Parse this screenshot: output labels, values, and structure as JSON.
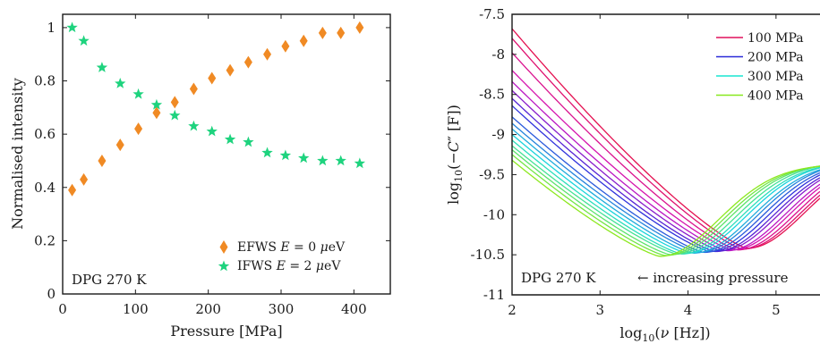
{
  "chart_data": [
    {
      "type": "scatter",
      "xlabel": "Pressure [MPa]",
      "ylabel": "Normalised intensity",
      "xlim": [
        0,
        450
      ],
      "ylim": [
        0,
        1.05
      ],
      "xticks": [
        "0",
        "100",
        "200",
        "300",
        "400"
      ],
      "yticks": [
        "0",
        "0.2",
        "0.4",
        "0.6",
        "0.8",
        "1"
      ],
      "annotation": "DPG 270 K",
      "legend_position": "bottom-right",
      "series": [
        {
          "name": "EFWS E = 0 μeV",
          "legend_parts": [
            "EFWS ",
            "E",
            " = 0 ",
            "μ",
            "eV"
          ],
          "marker": "diamond",
          "color": "#f08a24",
          "x": [
            13,
            29,
            54,
            79,
            104,
            129,
            154,
            180,
            205,
            230,
            255,
            281,
            306,
            331,
            357,
            382,
            408
          ],
          "y": [
            0.39,
            0.43,
            0.5,
            0.56,
            0.62,
            0.68,
            0.72,
            0.77,
            0.81,
            0.84,
            0.87,
            0.9,
            0.93,
            0.95,
            0.98,
            0.98,
            1.0
          ]
        },
        {
          "name": "IFWS E = 2 μeV",
          "legend_parts": [
            "IFWS ",
            "E",
            " = 2 ",
            "μ",
            "eV"
          ],
          "marker": "star",
          "color": "#1ed37e",
          "x": [
            13,
            29,
            54,
            79,
            104,
            129,
            154,
            180,
            205,
            230,
            255,
            281,
            306,
            331,
            357,
            382,
            408
          ],
          "y": [
            1.0,
            0.95,
            0.85,
            0.79,
            0.75,
            0.71,
            0.67,
            0.63,
            0.61,
            0.58,
            0.57,
            0.53,
            0.52,
            0.51,
            0.5,
            0.5,
            0.49
          ]
        }
      ]
    },
    {
      "type": "line",
      "xlabel_parts": [
        "log",
        "10",
        "(",
        "ν",
        " [Hz])"
      ],
      "ylabel_parts": [
        "log",
        "10",
        "(−",
        "C",
        "″",
        " [F])"
      ],
      "xlim": [
        2,
        5.5
      ],
      "ylim": [
        -11,
        -7.5
      ],
      "xticks": [
        "2",
        "3",
        "4",
        "5"
      ],
      "yticks": [
        "-7.5",
        "-8",
        "-8.5",
        "-9",
        "-9.5",
        "-10",
        "-10.5",
        "-11"
      ],
      "annotation": "DPG 270 K",
      "arrow_label": "← increasing pressure",
      "legend_position": "top-right",
      "legend": [
        {
          "label": "100 MPa",
          "color": "#e0105c"
        },
        {
          "label": "200 MPa",
          "color": "#2a2ad8"
        },
        {
          "label": "300 MPa",
          "color": "#18e6d2"
        },
        {
          "label": "400 MPa",
          "color": "#88e81e"
        }
      ],
      "curve_model": {
        "pressures_mpa": [
          13,
          29,
          54,
          79,
          104,
          129,
          154,
          180,
          205,
          230,
          255,
          281,
          306,
          331,
          357,
          382,
          408
        ],
        "min_x": [
          4.67,
          4.62,
          4.56,
          4.5,
          4.44,
          4.37,
          4.31,
          4.25,
          4.18,
          4.12,
          4.06,
          3.99,
          3.93,
          3.87,
          3.8,
          3.74,
          3.68
        ],
        "min_y": [
          -10.42,
          -10.43,
          -10.44,
          -10.44,
          -10.45,
          -10.45,
          -10.46,
          -10.46,
          -10.47,
          -10.47,
          -10.48,
          -10.48,
          -10.49,
          -10.49,
          -10.5,
          -10.51,
          -10.52
        ],
        "y_at_x2": [
          -7.68,
          -7.8,
          -7.98,
          -8.2,
          -8.34,
          -8.45,
          -8.55,
          -8.64,
          -8.78,
          -8.86,
          -8.93,
          -9.0,
          -9.07,
          -9.14,
          -9.19,
          -9.25,
          -9.32
        ]
      }
    }
  ]
}
